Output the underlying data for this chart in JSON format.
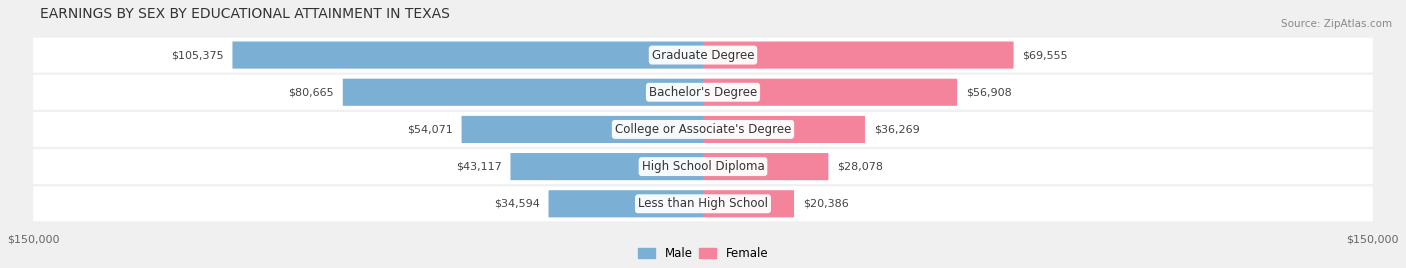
{
  "title": "EARNINGS BY SEX BY EDUCATIONAL ATTAINMENT IN TEXAS",
  "source": "Source: ZipAtlas.com",
  "categories": [
    "Less than High School",
    "High School Diploma",
    "College or Associate's Degree",
    "Bachelor's Degree",
    "Graduate Degree"
  ],
  "male_values": [
    34594,
    43117,
    54071,
    80665,
    105375
  ],
  "female_values": [
    20386,
    28078,
    36269,
    56908,
    69555
  ],
  "male_color": "#7bafd4",
  "female_color": "#f4849c",
  "male_label": "Male",
  "female_label": "Female",
  "xlim": 150000,
  "background_color": "#f0f0f0",
  "bar_background": "#e8e8e8",
  "title_fontsize": 10,
  "label_fontsize": 8,
  "tick_fontsize": 8
}
